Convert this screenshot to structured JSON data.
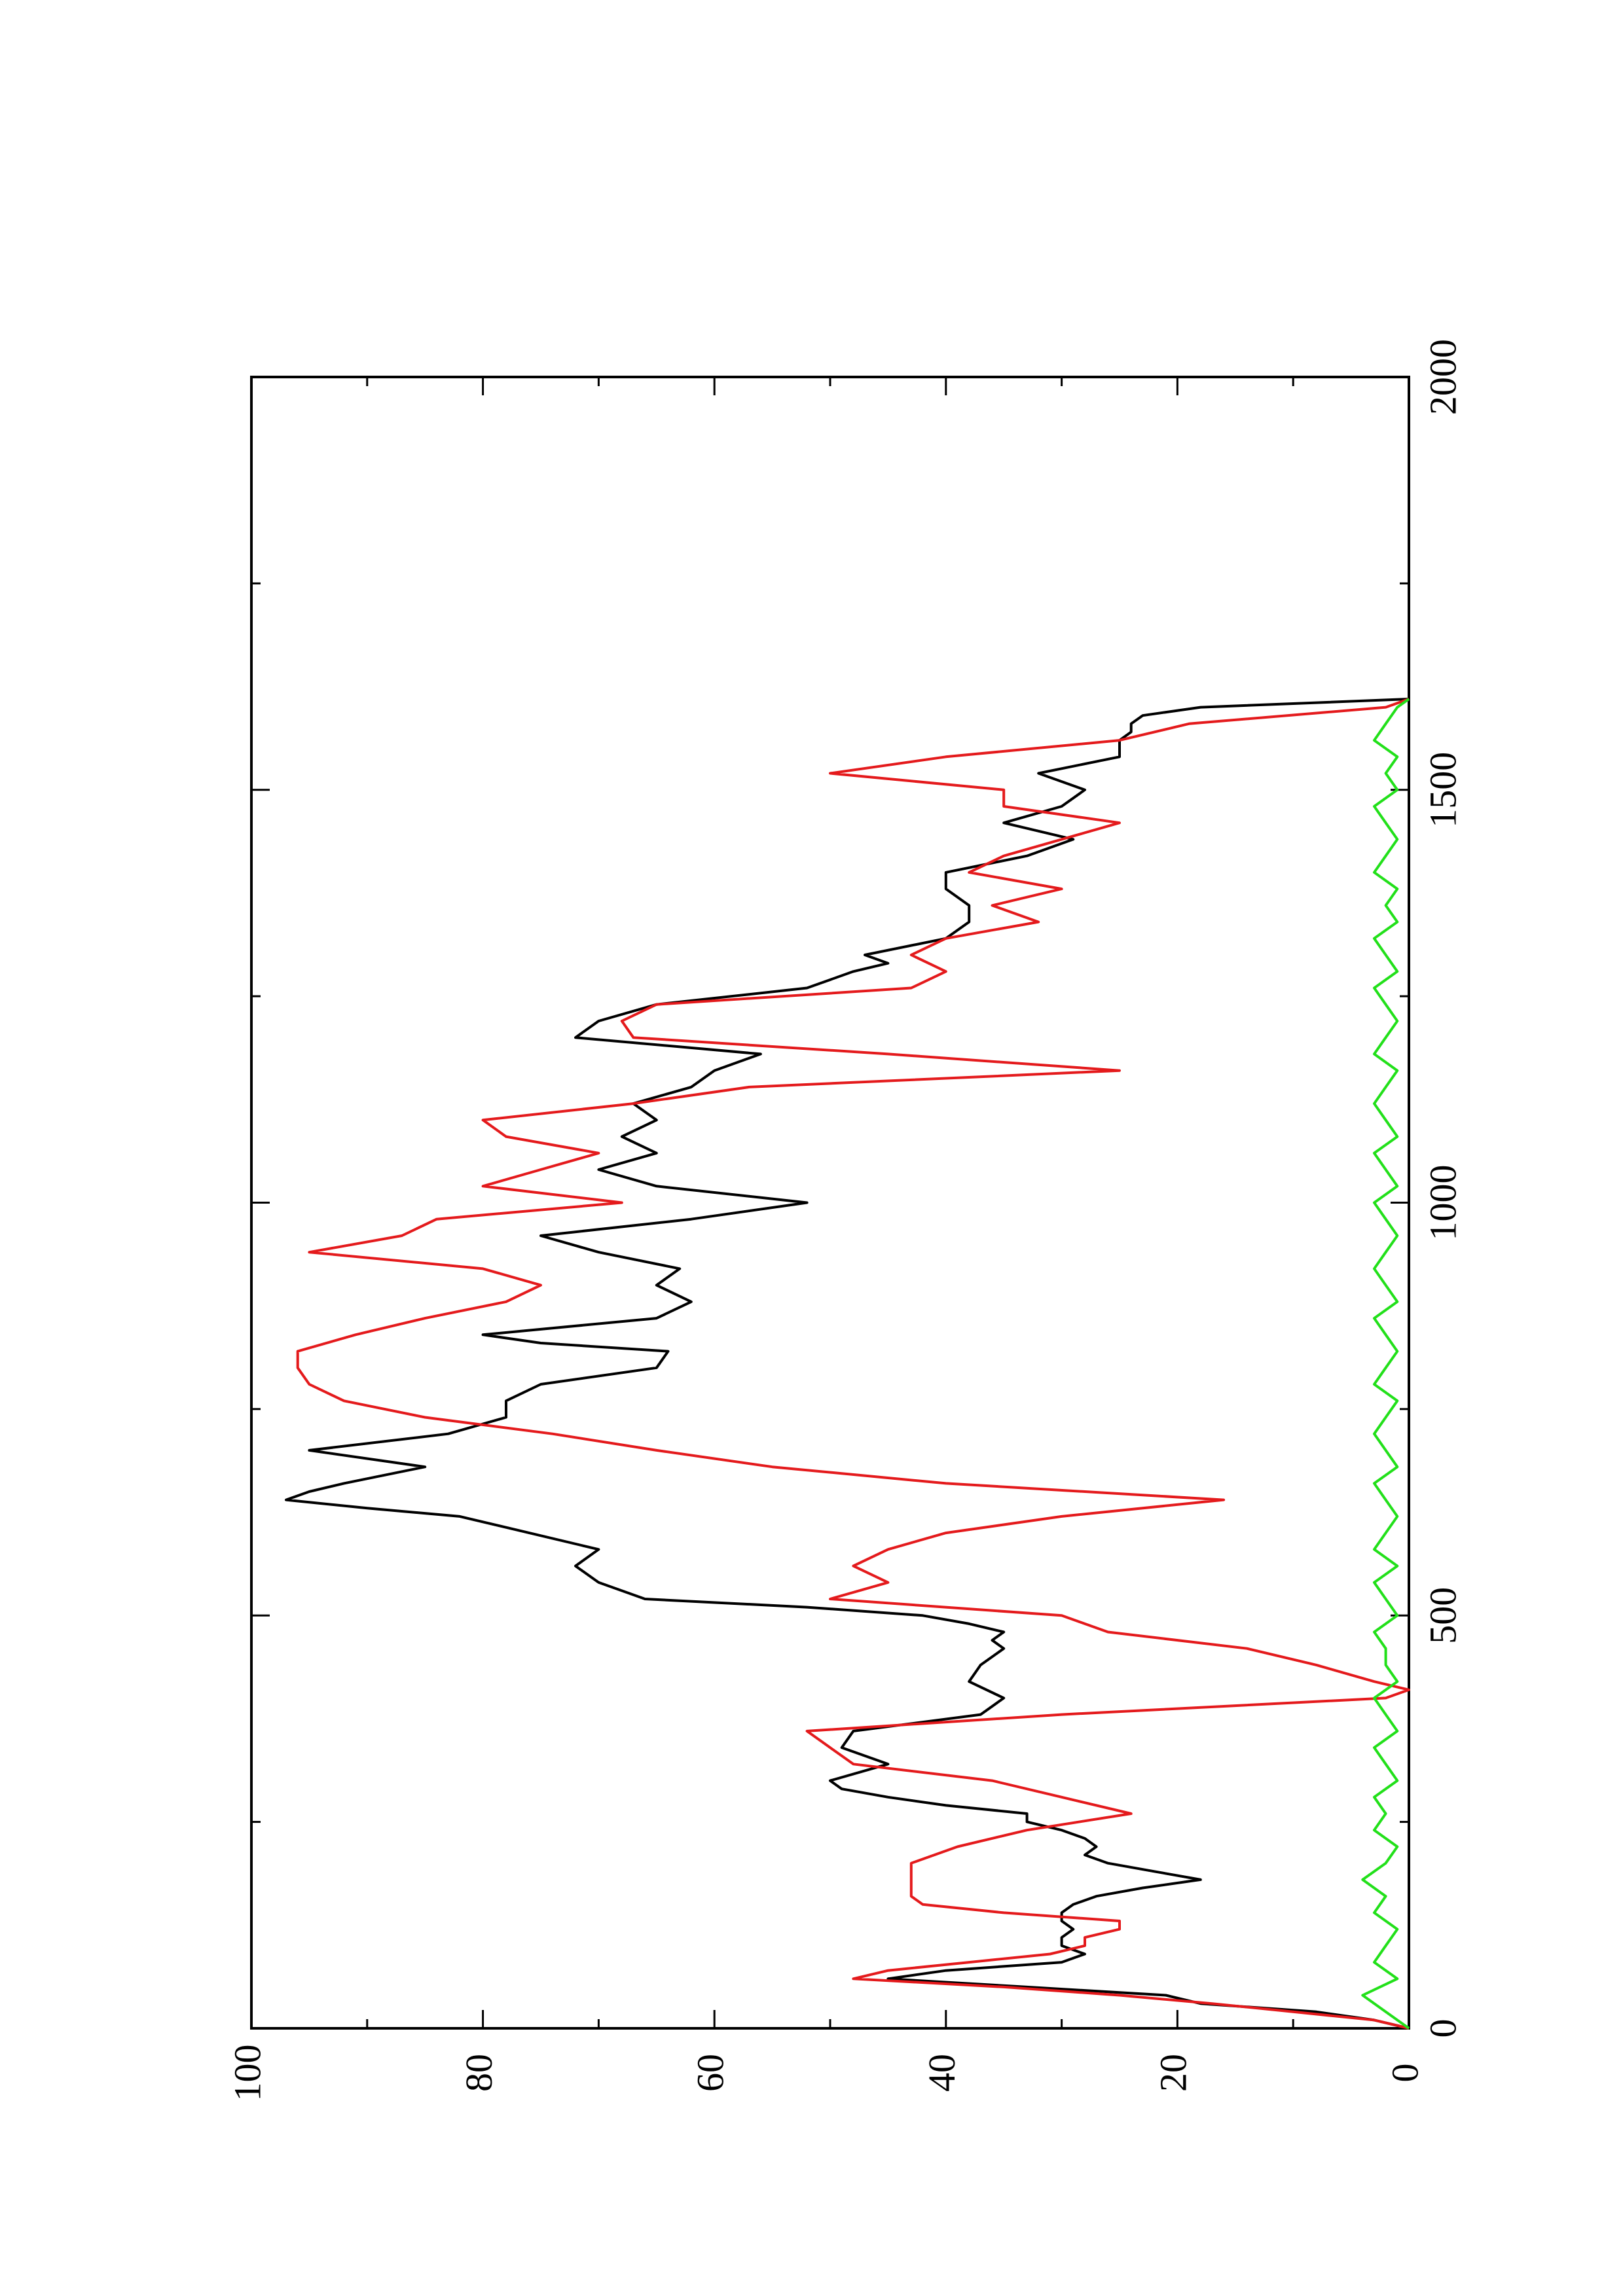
{
  "chart_data": {
    "type": "line",
    "title": "",
    "xlabel": "",
    "ylabel": "",
    "xlim": [
      0,
      2000
    ],
    "ylim": [
      0,
      100
    ],
    "x_ticks": [
      0,
      500,
      1000,
      1500,
      2000
    ],
    "y_ticks": [
      0,
      20,
      40,
      60,
      80,
      100
    ],
    "x_tick_labels": [
      "0",
      "500",
      "1000",
      "1500",
      "2000"
    ],
    "y_tick_labels": [
      "0",
      "20",
      "40",
      "60",
      "80",
      "100"
    ],
    "orientation": "rotated-90-counterclockwise",
    "grid": false,
    "legend": "none",
    "series": [
      {
        "color": "#000000",
        "x": [
          0,
          10,
          20,
          30,
          40,
          50,
          60,
          70,
          80,
          90,
          100,
          110,
          120,
          130,
          140,
          150,
          160,
          170,
          180,
          190,
          200,
          210,
          220,
          230,
          240,
          250,
          260,
          270,
          280,
          290,
          300,
          320,
          340,
          360,
          380,
          400,
          420,
          440,
          460,
          470,
          480,
          490,
          500,
          510,
          520,
          530,
          540,
          560,
          580,
          600,
          620,
          630,
          640,
          650,
          660,
          680,
          700,
          720,
          740,
          760,
          780,
          800,
          820,
          830,
          840,
          860,
          880,
          900,
          920,
          940,
          960,
          980,
          1000,
          1020,
          1040,
          1060,
          1080,
          1100,
          1120,
          1140,
          1160,
          1180,
          1200,
          1220,
          1240,
          1260,
          1280,
          1290,
          1300,
          1320,
          1340,
          1360,
          1380,
          1400,
          1420,
          1440,
          1460,
          1480,
          1500,
          1520,
          1540,
          1560,
          1570,
          1580,
          1590,
          1600,
          1610
        ],
        "y": [
          0,
          3,
          8,
          18,
          21,
          33,
          45,
          40,
          30,
          28,
          30,
          30,
          29,
          30,
          30,
          29,
          27,
          23,
          18,
          22,
          26,
          28,
          27,
          28,
          30,
          33,
          33,
          40,
          45,
          49,
          50,
          45,
          49,
          48,
          37,
          35,
          38,
          37,
          35,
          36,
          35,
          38,
          42,
          52,
          66,
          68,
          70,
          72,
          70,
          76,
          82,
          90,
          97,
          95,
          92,
          85,
          95,
          83,
          78,
          78,
          75,
          65,
          64,
          75,
          80,
          65,
          62,
          65,
          63,
          70,
          75,
          62,
          52,
          65,
          70,
          65,
          68,
          65,
          67,
          62,
          60,
          56,
          72,
          70,
          65,
          52,
          48,
          45,
          47,
          40,
          38,
          38,
          40,
          40,
          33,
          29,
          35,
          30,
          28,
          32,
          25,
          25,
          24,
          24,
          23,
          18,
          0
        ]
      },
      {
        "color": "#e41a1c",
        "x": [
          0,
          10,
          20,
          30,
          40,
          50,
          60,
          70,
          80,
          90,
          100,
          110,
          120,
          130,
          140,
          150,
          160,
          180,
          200,
          220,
          240,
          260,
          280,
          300,
          320,
          340,
          360,
          380,
          400,
          410,
          420,
          440,
          460,
          480,
          500,
          520,
          540,
          560,
          580,
          600,
          620,
          640,
          660,
          680,
          700,
          720,
          740,
          760,
          780,
          800,
          820,
          840,
          860,
          880,
          900,
          920,
          940,
          960,
          980,
          1000,
          1020,
          1040,
          1060,
          1080,
          1100,
          1120,
          1140,
          1160,
          1180,
          1200,
          1220,
          1240,
          1260,
          1280,
          1300,
          1320,
          1340,
          1360,
          1380,
          1400,
          1420,
          1440,
          1460,
          1480,
          1500,
          1520,
          1540,
          1560,
          1580,
          1600,
          1610
        ],
        "y": [
          0,
          3,
          10,
          17,
          25,
          35,
          48,
          45,
          38,
          31,
          28,
          28,
          25,
          25,
          35,
          42,
          43,
          43,
          43,
          39,
          33,
          24,
          30,
          36,
          48,
          50,
          52,
          30,
          2,
          0,
          3,
          8,
          14,
          26,
          30,
          50,
          45,
          48,
          45,
          40,
          30,
          16,
          40,
          55,
          65,
          74,
          85,
          92,
          95,
          96,
          96,
          91,
          85,
          78,
          75,
          80,
          95,
          87,
          84,
          68,
          80,
          75,
          70,
          78,
          80,
          67,
          57,
          25,
          45,
          67,
          68,
          65,
          43,
          40,
          43,
          40,
          32,
          36,
          30,
          38,
          35,
          30,
          25,
          35,
          35,
          50,
          40,
          25,
          19,
          2,
          0
        ]
      },
      {
        "color": "#22e01a",
        "x": [
          0,
          20,
          40,
          60,
          80,
          100,
          120,
          140,
          160,
          180,
          200,
          220,
          240,
          260,
          280,
          300,
          320,
          340,
          360,
          380,
          400,
          420,
          440,
          460,
          480,
          500,
          520,
          540,
          560,
          580,
          600,
          620,
          640,
          660,
          680,
          700,
          720,
          740,
          760,
          780,
          800,
          820,
          840,
          860,
          880,
          900,
          920,
          940,
          960,
          980,
          1000,
          1020,
          1040,
          1060,
          1080,
          1100,
          1120,
          1140,
          1160,
          1180,
          1200,
          1220,
          1240,
          1260,
          1280,
          1300,
          1320,
          1340,
          1360,
          1380,
          1400,
          1420,
          1440,
          1460,
          1480,
          1500,
          1520,
          1540,
          1560,
          1580,
          1600,
          1610
        ],
        "y": [
          0,
          2,
          4,
          1,
          3,
          2,
          1,
          3,
          2,
          4,
          2,
          1,
          3,
          2,
          3,
          1,
          2,
          3,
          1,
          2,
          3,
          1,
          2,
          2,
          3,
          1,
          2,
          3,
          1,
          3,
          2,
          1,
          2,
          3,
          1,
          2,
          3,
          2,
          1,
          3,
          2,
          1,
          2,
          3,
          1,
          2,
          3,
          2,
          1,
          2,
          3,
          1,
          2,
          3,
          1,
          2,
          3,
          2,
          1,
          3,
          2,
          1,
          2,
          3,
          1,
          2,
          3,
          1,
          2,
          1,
          3,
          2,
          1,
          2,
          3,
          1,
          2,
          1,
          3,
          2,
          1,
          0
        ]
      }
    ]
  }
}
